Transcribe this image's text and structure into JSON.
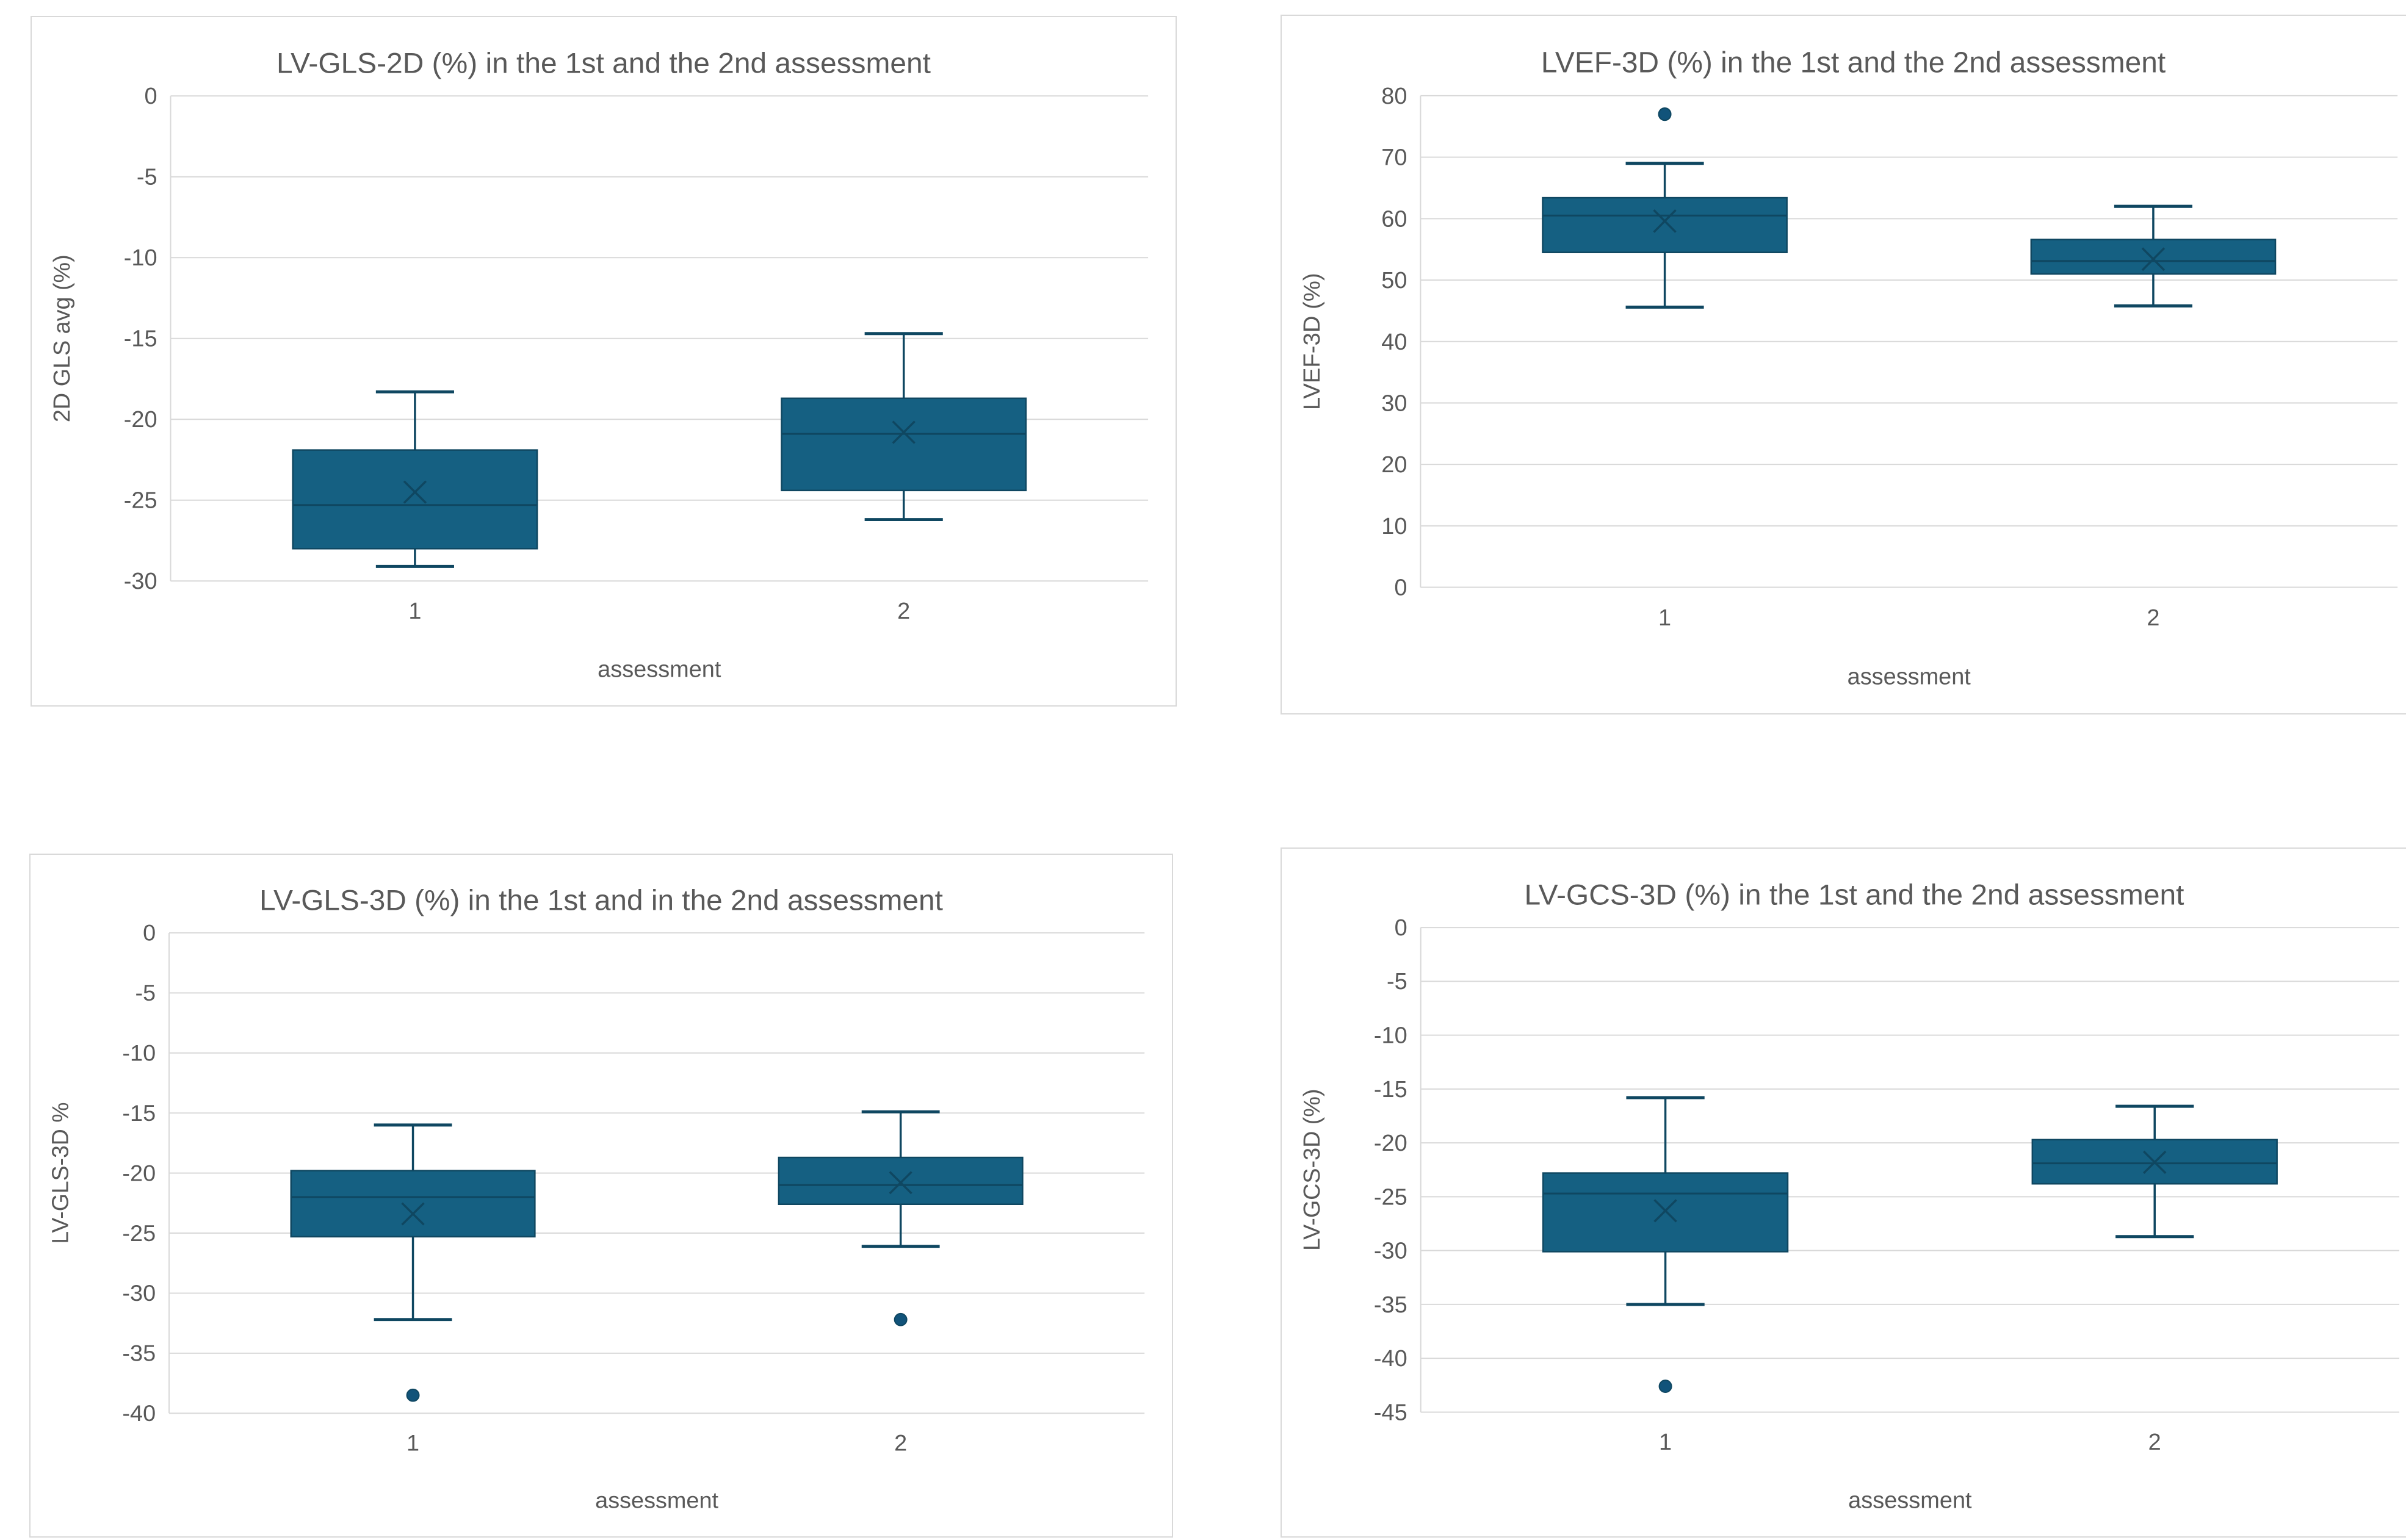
{
  "page": {
    "background": "#FFFFFF"
  },
  "colors": {
    "box_fill": "#156082",
    "box_stroke": "#0F4761",
    "median_line": "#0F4761",
    "whisker": "#0F4761",
    "mean_marker": "#0F4761",
    "outlier_fill": "#11537A",
    "outlier_stroke": "#0F4761",
    "gridline": "#D9D9D9",
    "axis_line": "#D9D9D9",
    "text": "#595959",
    "panel_border": "#D9D9D9"
  },
  "chart_data": [
    {
      "type": "boxplot",
      "title": "LV-GLS-2D (%) in the 1st and the 2nd assessment",
      "xlabel": "assessment",
      "ylabel": "2D GLS avg (%)",
      "categories": [
        "1",
        "2"
      ],
      "y_axis": {
        "min": -30,
        "max": 0,
        "step": 5,
        "ticks": [
          0,
          -5,
          -10,
          -15,
          -20,
          -25,
          -30
        ]
      },
      "grid": true,
      "legend": "none",
      "series": [
        {
          "category": "1",
          "whisker_low": -29.1,
          "q1": -28.0,
          "median": -25.3,
          "mean": -24.5,
          "q3": -21.9,
          "whisker_high": -18.3,
          "outliers": []
        },
        {
          "category": "2",
          "whisker_low": -26.2,
          "q1": -24.4,
          "median": -20.9,
          "mean": -20.8,
          "q3": -18.7,
          "whisker_high": -14.7,
          "outliers": []
        }
      ]
    },
    {
      "type": "boxplot",
      "title": "LVEF-3D (%) in the 1st and the 2nd assessment",
      "xlabel": "assessment",
      "ylabel": "LVEF-3D (%)",
      "categories": [
        "1",
        "2"
      ],
      "y_axis": {
        "min": 0,
        "max": 80,
        "step": 10,
        "ticks": [
          80,
          70,
          60,
          50,
          40,
          30,
          20,
          10,
          0
        ]
      },
      "grid": true,
      "legend": "none",
      "series": [
        {
          "category": "1",
          "whisker_low": 45.6,
          "q1": 54.5,
          "median": 60.5,
          "mean": 59.6,
          "q3": 63.4,
          "whisker_high": 69.0,
          "outliers": [
            77.0
          ]
        },
        {
          "category": "2",
          "whisker_low": 45.8,
          "q1": 51.0,
          "median": 53.1,
          "mean": 53.4,
          "q3": 56.6,
          "whisker_high": 62.0,
          "outliers": []
        }
      ]
    },
    {
      "type": "boxplot",
      "title": "LV-GLS-3D (%) in the 1st and in the 2nd assessment",
      "xlabel": "assessment",
      "ylabel": "LV-GLS-3D %",
      "categories": [
        "1",
        "2"
      ],
      "y_axis": {
        "min": -40,
        "max": 0,
        "step": 5,
        "ticks": [
          0,
          -5,
          -10,
          -15,
          -20,
          -25,
          -30,
          -35,
          -40
        ]
      },
      "grid": true,
      "legend": "none",
      "series": [
        {
          "category": "1",
          "whisker_low": -32.2,
          "q1": -25.3,
          "median": -22.0,
          "mean": -23.4,
          "q3": -19.8,
          "whisker_high": -16.0,
          "outliers": [
            -38.5
          ]
        },
        {
          "category": "2",
          "whisker_low": -26.1,
          "q1": -22.6,
          "median": -21.0,
          "mean": -20.8,
          "q3": -18.7,
          "whisker_high": -14.9,
          "outliers": [
            -32.2
          ]
        }
      ]
    },
    {
      "type": "boxplot",
      "title": "LV-GCS-3D (%) in the 1st and the 2nd assessment",
      "xlabel": "assessment",
      "ylabel": "LV-GCS-3D (%)",
      "categories": [
        "1",
        "2"
      ],
      "y_axis": {
        "min": -45,
        "max": 0,
        "step": 5,
        "ticks": [
          0,
          -5,
          -10,
          -15,
          -20,
          -25,
          -30,
          -35,
          -40,
          -45
        ]
      },
      "grid": true,
      "legend": "none",
      "series": [
        {
          "category": "1",
          "whisker_low": -35.0,
          "q1": -30.1,
          "median": -24.7,
          "mean": -26.3,
          "q3": -22.8,
          "whisker_high": -15.8,
          "outliers": [
            -42.6
          ]
        },
        {
          "category": "2",
          "whisker_low": -28.7,
          "q1": -23.8,
          "median": -21.9,
          "mean": -21.8,
          "q3": -19.7,
          "whisker_high": -16.6,
          "outliers": []
        }
      ]
    }
  ]
}
